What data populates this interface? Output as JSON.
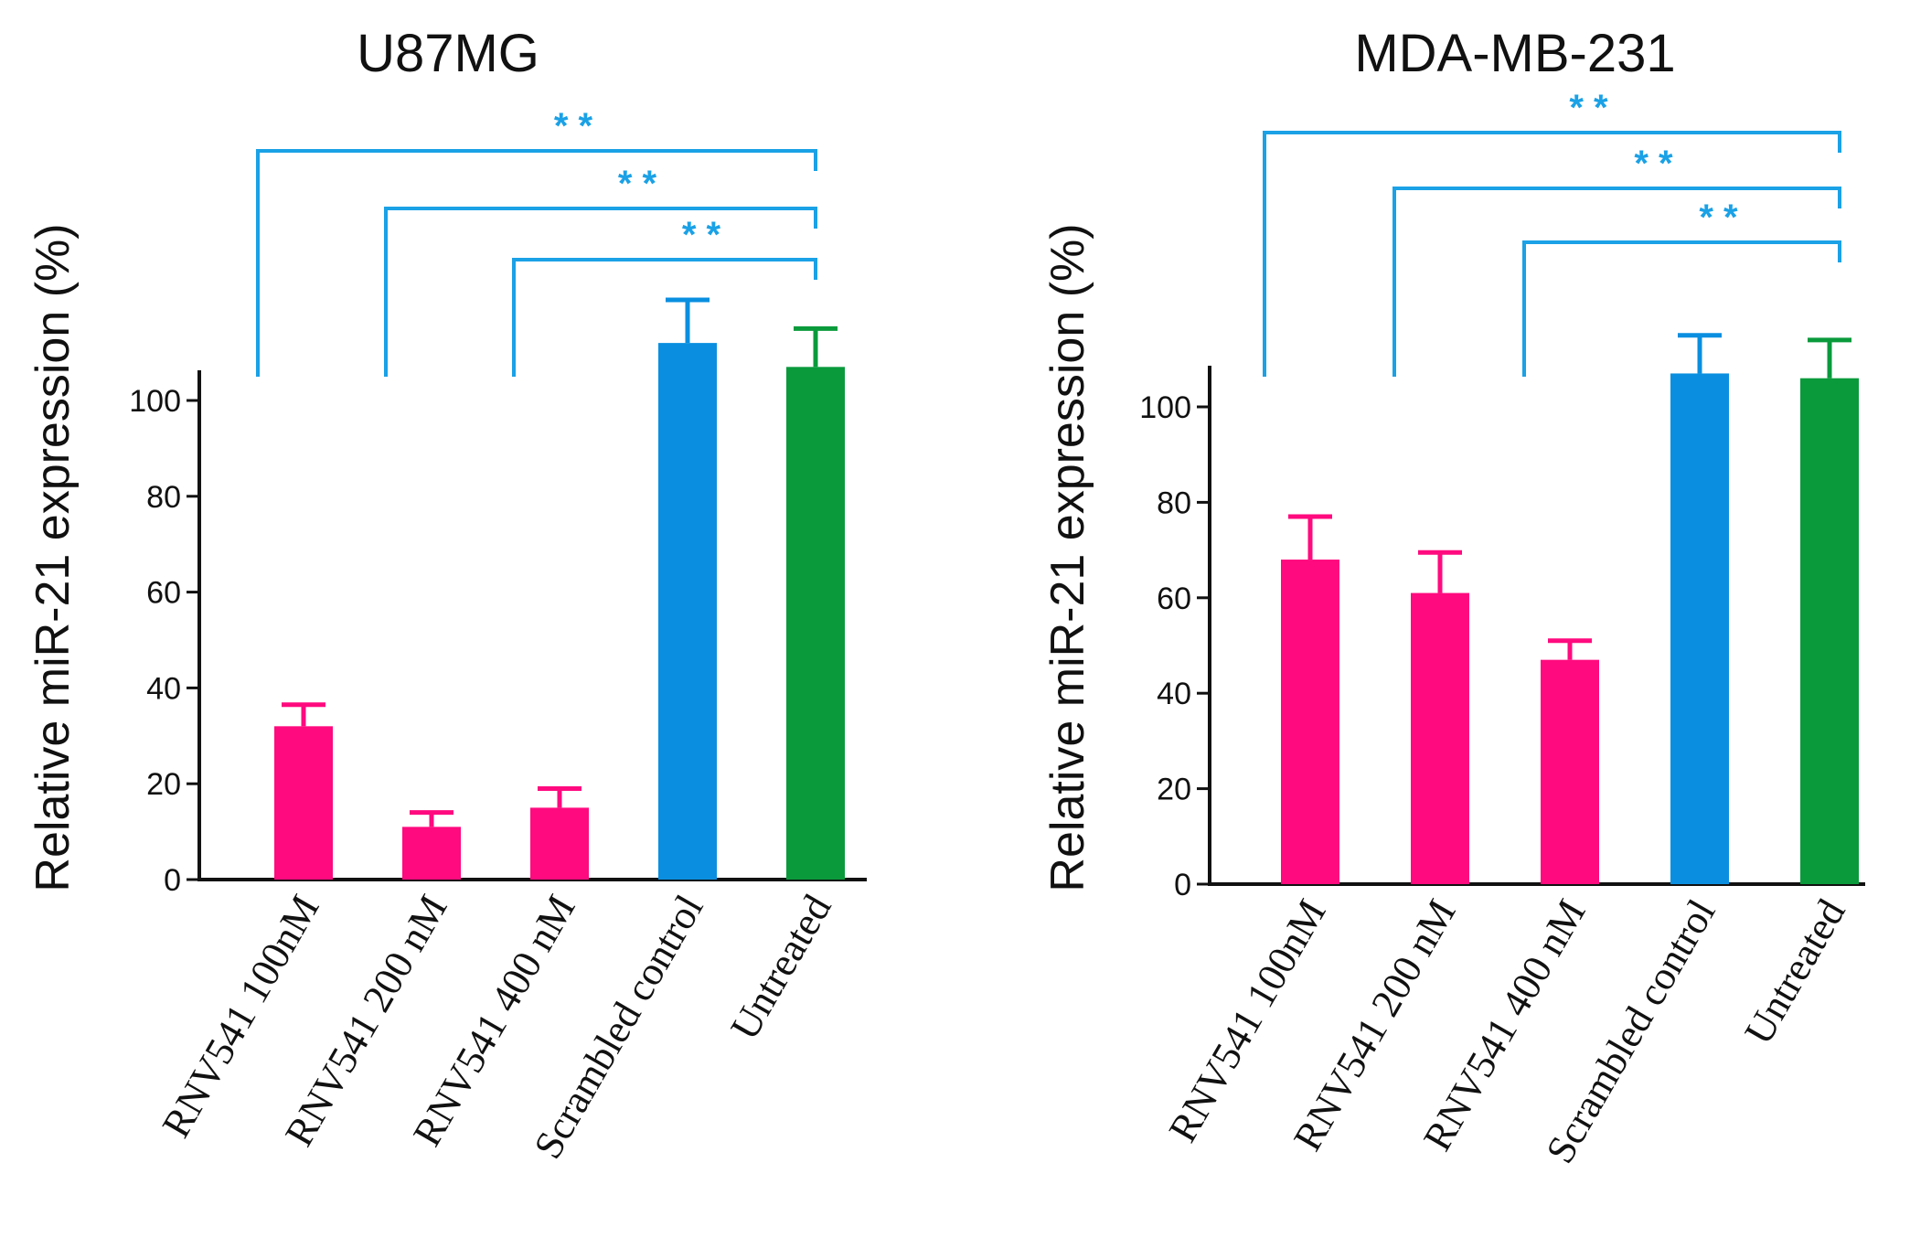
{
  "chart_data": [
    {
      "type": "bar",
      "title": "U87MG",
      "xlabel": "",
      "ylabel": "Relative miR-21 expression (%)",
      "ylim": [
        0,
        105
      ],
      "yticks": [
        0,
        20,
        40,
        60,
        80,
        100
      ],
      "categories": [
        "RNV541 100nM",
        "RNV541 200 nM",
        "RNV541 400 nM",
        "Scrambled control",
        "Untreated"
      ],
      "values": [
        32,
        11,
        15,
        112,
        107
      ],
      "errors": [
        4.5,
        3,
        4,
        9,
        8
      ],
      "colors": [
        "#ff0a7f",
        "#ff0a7f",
        "#ff0a7f",
        "#0a8fe0",
        "#0a9a3c"
      ],
      "significance": [
        {
          "from": 0,
          "to": 4,
          "label": "* *"
        },
        {
          "from": 1,
          "to": 4,
          "label": "* *"
        },
        {
          "from": 2,
          "to": 4,
          "label": "* *"
        }
      ]
    },
    {
      "type": "bar",
      "title": "MDA-MB-231",
      "xlabel": "",
      "ylabel": "Relative miR-21 expression (%)",
      "ylim": [
        0,
        105
      ],
      "yticks": [
        0,
        20,
        40,
        60,
        80,
        100
      ],
      "categories": [
        "RNV541 100nM",
        "RNV541 200 nM",
        "RNV541 400 nM",
        "Scrambled control",
        "Untreated"
      ],
      "values": [
        68,
        61,
        47,
        107,
        106
      ],
      "errors": [
        9,
        8.5,
        4,
        8,
        8
      ],
      "colors": [
        "#ff0a7f",
        "#ff0a7f",
        "#ff0a7f",
        "#0a8fe0",
        "#0a9a3c"
      ],
      "significance": [
        {
          "from": 0,
          "to": 4,
          "label": "* *"
        },
        {
          "from": 1,
          "to": 4,
          "label": "* *"
        },
        {
          "from": 2,
          "to": 4,
          "label": "* *"
        }
      ]
    }
  ],
  "style": {
    "significance_color": "#1aa1e6",
    "axis_color": "#111111"
  }
}
